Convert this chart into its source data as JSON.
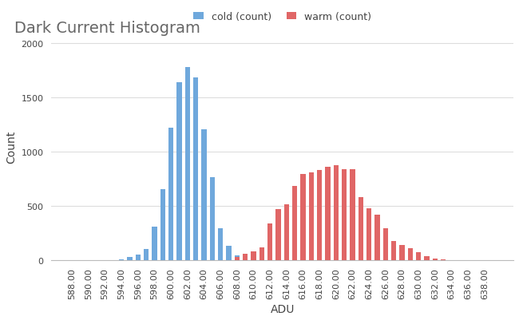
{
  "title": "Dark Current Histogram",
  "xlabel": "ADU",
  "ylabel": "Count",
  "cold_color": "#6fa8dc",
  "warm_color": "#e06666",
  "cold_label": "cold (count)",
  "warm_label": "warm (count)",
  "cold_data": {
    "594": 10,
    "595": 30,
    "596": 50,
    "597": 100,
    "598": 310,
    "599": 650,
    "600": 1220,
    "601": 1640,
    "602": 1780,
    "603": 1680,
    "604": 1200,
    "605": 760,
    "606": 290,
    "607": 130,
    "608": 40,
    "609": 20,
    "610": 5
  },
  "warm_data": {
    "608": 30,
    "609": 60,
    "610": 80,
    "611": 120,
    "612": 340,
    "613": 470,
    "614": 510,
    "615": 680,
    "616": 790,
    "617": 810,
    "618": 830,
    "619": 860,
    "620": 875,
    "621": 840,
    "622": 840,
    "623": 580,
    "624": 480,
    "625": 415,
    "626": 295,
    "627": 175,
    "628": 140,
    "629": 110,
    "630": 70,
    "631": 35,
    "632": 15,
    "633": 5
  },
  "xlim": [
    585.5,
    641.5
  ],
  "ylim": [
    0,
    2100
  ],
  "xtick_start": 588,
  "xtick_end": 639,
  "xtick_step": 2,
  "ytick_values": [
    0,
    500,
    1000,
    1500,
    2000
  ],
  "bar_width": 0.6,
  "title_fontsize": 14,
  "axis_label_fontsize": 10,
  "tick_fontsize": 8,
  "legend_fontsize": 9,
  "background_color": "#ffffff",
  "grid_color": "#dddddd",
  "title_color": "#666666",
  "tick_color": "#444444"
}
